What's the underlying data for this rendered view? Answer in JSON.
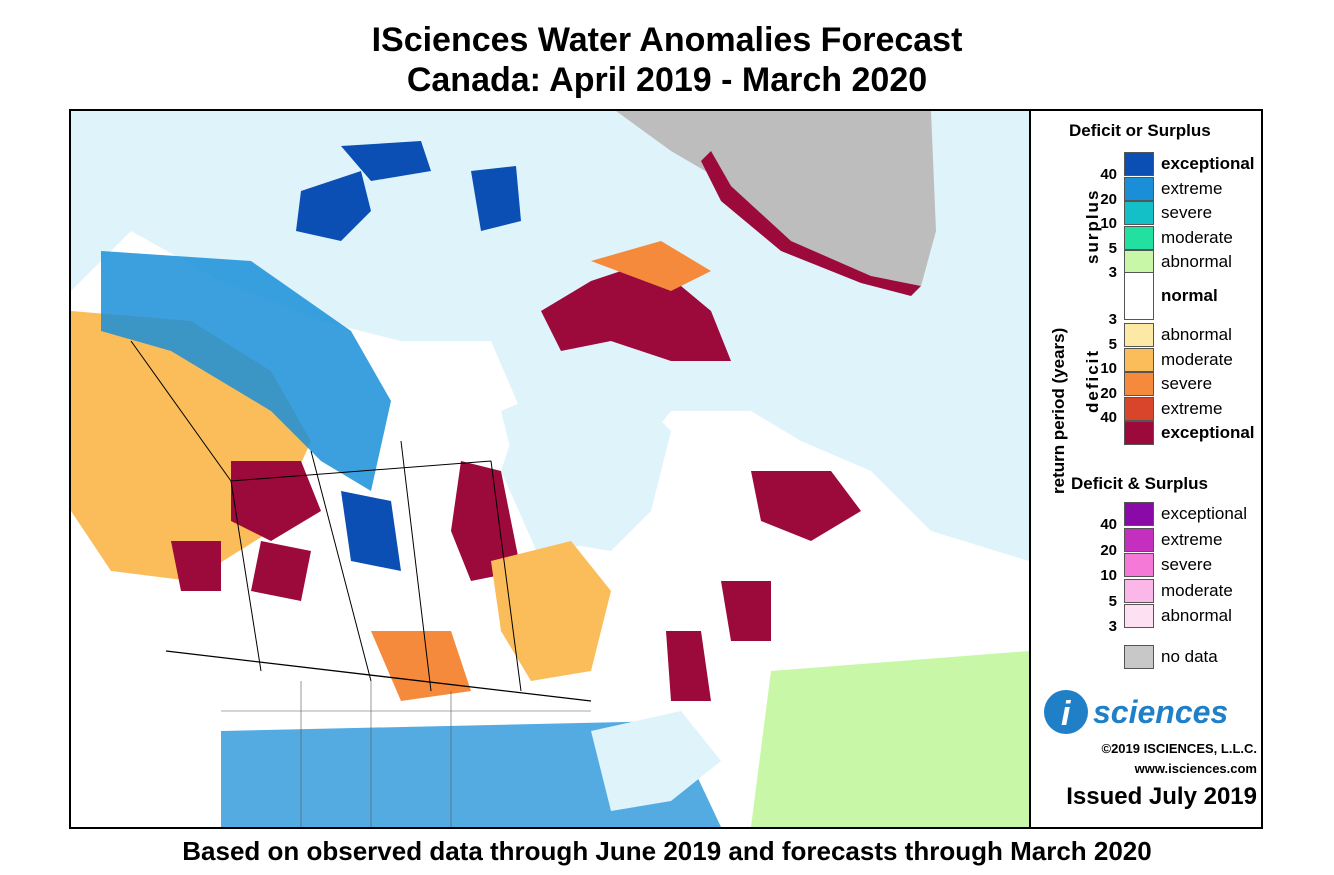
{
  "title": {
    "line1": "ISciences Water Anomalies Forecast",
    "line2": "Canada: April 2019 - March 2020"
  },
  "footer": "Based on observed data through June 2019 and forecasts through March 2020",
  "legend": {
    "deficit_or_surplus_title": "Deficit or Surplus",
    "return_period_label": "return period (years)",
    "surplus_label": "surplus",
    "deficit_label": "deficit",
    "surplus_classes": [
      {
        "label": "exceptional",
        "color": "#0b4fb4",
        "bold": true
      },
      {
        "label": "extreme",
        "color": "#1a8fd8",
        "bold": false
      },
      {
        "label": "severe",
        "color": "#14c0c8",
        "bold": false
      },
      {
        "label": "moderate",
        "color": "#22e0a0",
        "bold": false
      },
      {
        "label": "abnormal",
        "color": "#c8f7a8",
        "bold": false
      }
    ],
    "surplus_ticks": [
      "40",
      "20",
      "10",
      "5",
      "3"
    ],
    "normal": {
      "label": "normal",
      "color": "#ffffff"
    },
    "deficit_classes": [
      {
        "label": "abnormal",
        "color": "#fde9a6",
        "bold": false
      },
      {
        "label": "moderate",
        "color": "#fbbd5a",
        "bold": false
      },
      {
        "label": "severe",
        "color": "#f5893c",
        "bold": false
      },
      {
        "label": "extreme",
        "color": "#d9452a",
        "bold": false
      },
      {
        "label": "exceptional",
        "color": "#9b0a3a",
        "bold": true
      }
    ],
    "deficit_ticks": [
      "3",
      "5",
      "10",
      "20",
      "40"
    ],
    "both_title": "Deficit & Surplus",
    "both_classes": [
      {
        "label": "exceptional",
        "color": "#8a0aa8"
      },
      {
        "label": "extreme",
        "color": "#c42fc0"
      },
      {
        "label": "severe",
        "color": "#f57ad8"
      },
      {
        "label": "moderate",
        "color": "#fab7e8"
      },
      {
        "label": "abnormal",
        "color": "#fde0f2"
      }
    ],
    "both_ticks": [
      "40",
      "20",
      "10",
      "5",
      "3"
    ],
    "no_data": {
      "label": "no data",
      "color": "#c8c8c8"
    }
  },
  "branding": {
    "logo_letter": "i",
    "logo_text": "sciences",
    "copyright": "©2019 ISCIENCES, L.L.C.",
    "website": "www.isciences.com",
    "issued": "Issued July 2019",
    "logo_color": "#1f7fc7"
  },
  "map": {
    "water_color": "#dff3fb",
    "greenland_color": "#bdbdbd"
  }
}
